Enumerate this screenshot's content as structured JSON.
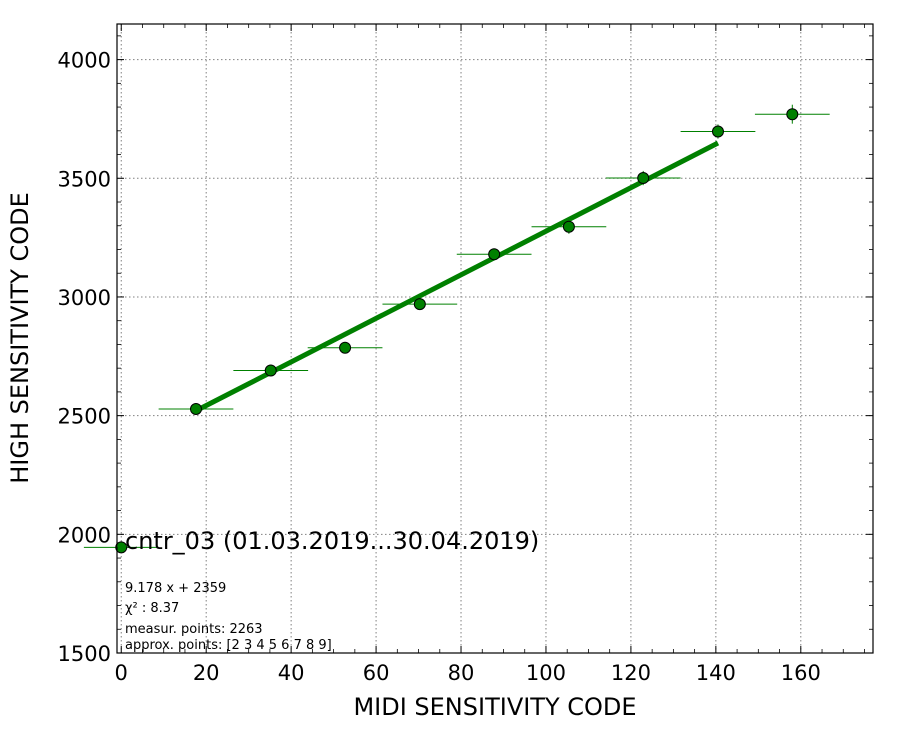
{
  "chart_data": {
    "type": "scatter",
    "xlabel": "MIDI SENSITIVITY CODE",
    "ylabel": "HIGH SENSITIVITY CODE",
    "xlim": [
      -1,
      177
    ],
    "ylim": [
      1500,
      4150
    ],
    "xticks": [
      0,
      20,
      40,
      60,
      80,
      100,
      120,
      140,
      160
    ],
    "yticks": [
      1500,
      2000,
      2500,
      3000,
      3500,
      4000
    ],
    "grid": true,
    "colors": {
      "marker": "#008000",
      "fit": "#008000",
      "marker_edge": "#000000",
      "errorbar": "#008000"
    },
    "points": [
      {
        "x": 0,
        "y": 1945,
        "xerr": 8.8,
        "yerr": 0
      },
      {
        "x": 17.6,
        "y": 2528,
        "xerr": 8.8,
        "yerr": 10
      },
      {
        "x": 35.2,
        "y": 2690,
        "xerr": 8.8,
        "yerr": 12
      },
      {
        "x": 52.7,
        "y": 2786,
        "xerr": 8.8,
        "yerr": 14
      },
      {
        "x": 70.3,
        "y": 2970,
        "xerr": 8.8,
        "yerr": 16
      },
      {
        "x": 87.8,
        "y": 3180,
        "xerr": 8.8,
        "yerr": 22
      },
      {
        "x": 105.4,
        "y": 3296,
        "xerr": 8.8,
        "yerr": 30
      },
      {
        "x": 122.9,
        "y": 3501,
        "xerr": 8.8,
        "yerr": 30
      },
      {
        "x": 140.5,
        "y": 3697,
        "xerr": 8.8,
        "yerr": 30
      },
      {
        "x": 158.0,
        "y": 3770,
        "xerr": 8.8,
        "yerr": 40
      }
    ],
    "fit": {
      "slope": 9.178,
      "intercept": 2359,
      "x_range": [
        17.6,
        140.5
      ]
    },
    "legend": {
      "label": "cntr_03 (01.03.2019...30.04.2019)",
      "placement": "lower-left"
    },
    "annotations": [
      "9.178 x + 2359",
      "χ² : 8.37",
      "measur. points: 2263",
      "approx. points: [2 3 4 5 6 7 8 9]"
    ]
  }
}
